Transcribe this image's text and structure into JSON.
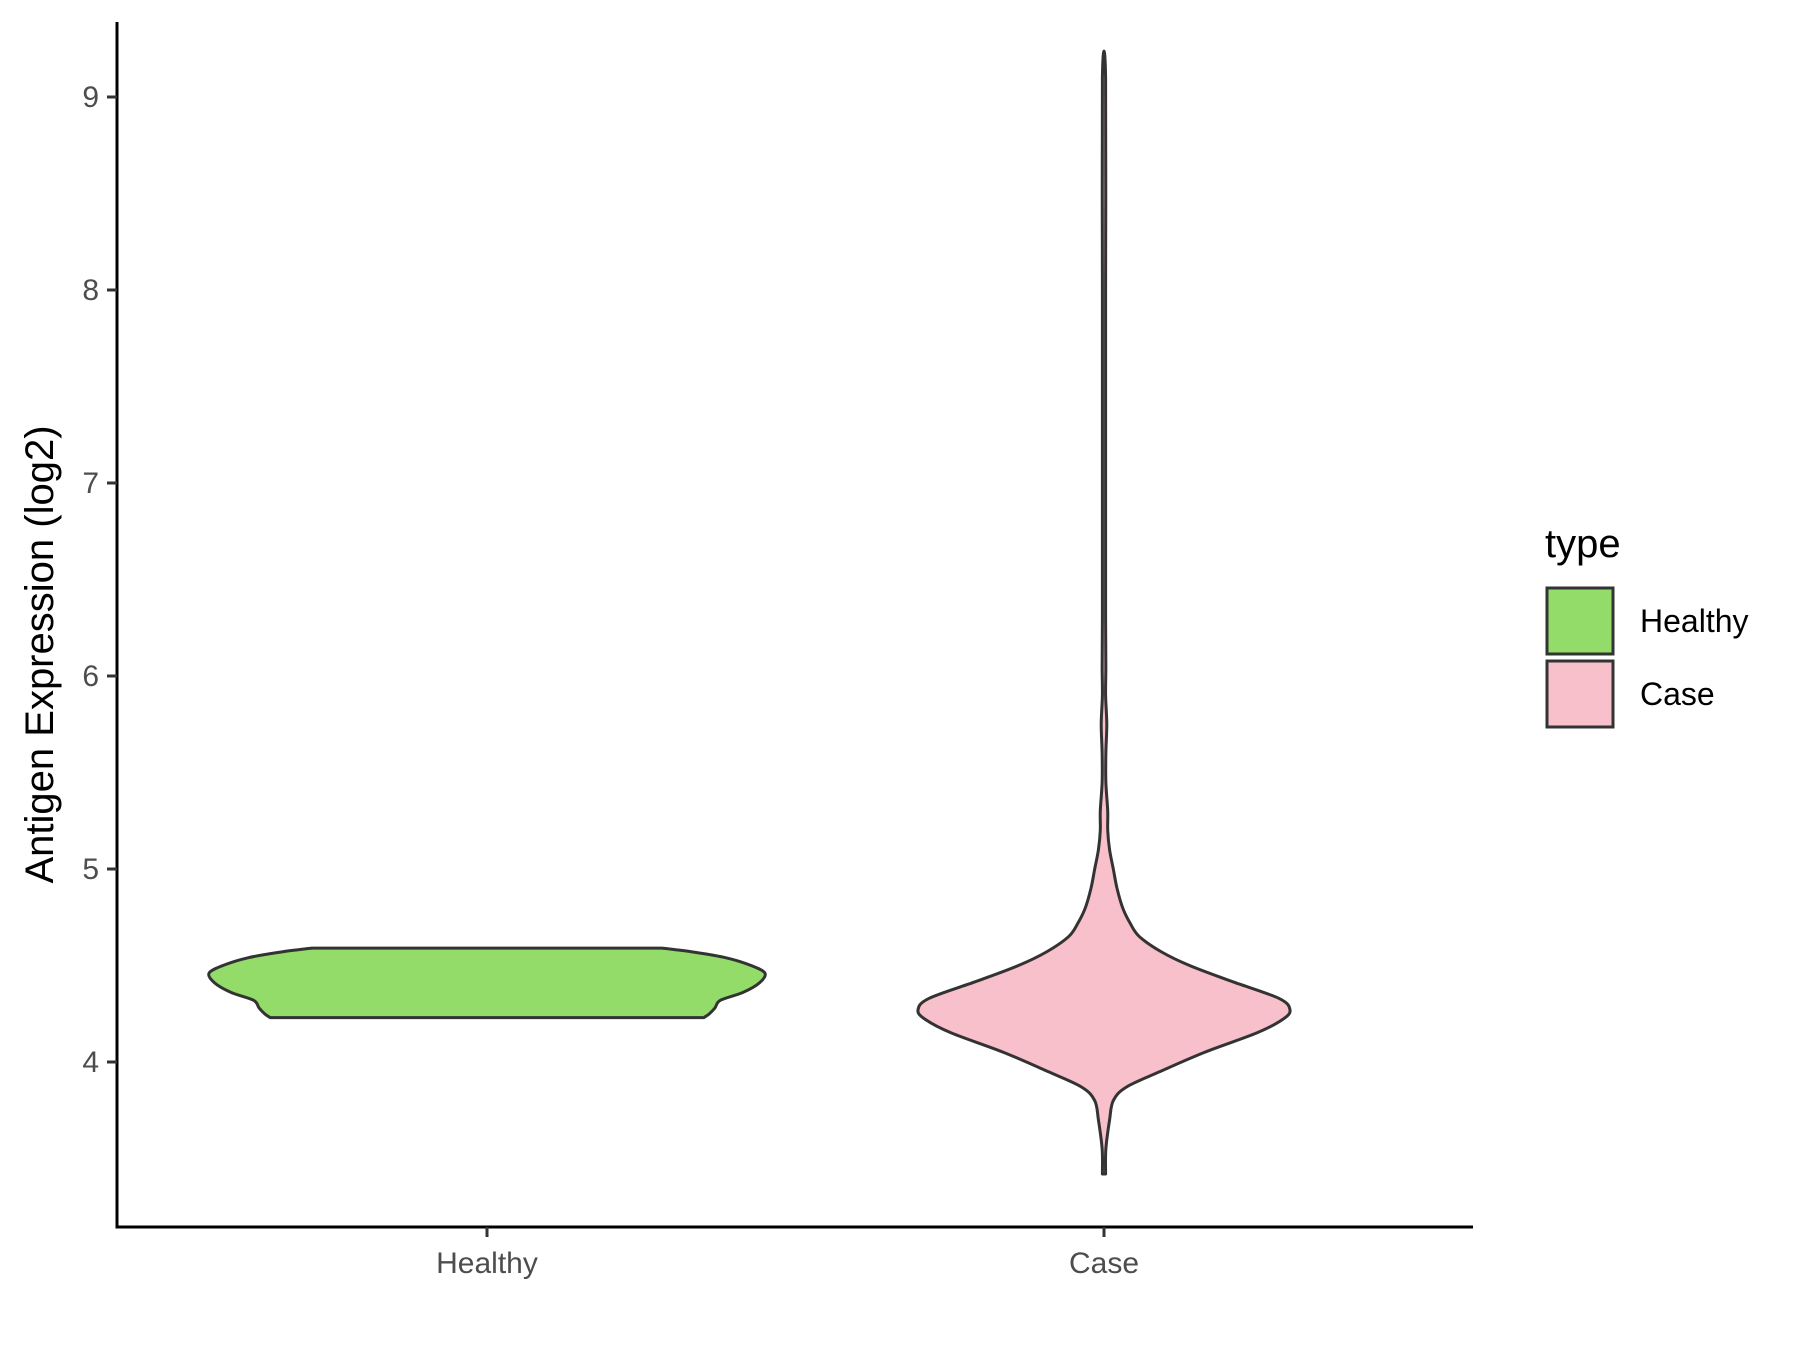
{
  "chart_data": {
    "type": "violin",
    "ylabel": "Antigen Expression (log2)",
    "xlabel": "",
    "categories": [
      "Healthy",
      "Case"
    ],
    "ylim": [
      3.2,
      9.4
    ],
    "yticks": [
      4,
      5,
      6,
      7,
      8,
      9
    ],
    "grid": false,
    "legend": {
      "title": "type",
      "position": "right",
      "entries": [
        {
          "label": "Healthy",
          "color": "#93dc6a"
        },
        {
          "label": "Case",
          "color": "#f7c0cb"
        }
      ]
    },
    "series": [
      {
        "name": "Healthy",
        "category": "Healthy",
        "color": "#93dc6a",
        "min": 4.23,
        "max": 4.59,
        "density": [
          {
            "y": 4.23,
            "w": 0.78
          },
          {
            "y": 4.25,
            "w": 0.8
          },
          {
            "y": 4.28,
            "w": 0.82
          },
          {
            "y": 4.32,
            "w": 0.84
          },
          {
            "y": 4.36,
            "w": 0.92
          },
          {
            "y": 4.41,
            "w": 0.98
          },
          {
            "y": 4.46,
            "w": 1.0
          },
          {
            "y": 4.5,
            "w": 0.95
          },
          {
            "y": 4.54,
            "w": 0.86
          },
          {
            "y": 4.57,
            "w": 0.74
          },
          {
            "y": 4.59,
            "w": 0.63
          }
        ]
      },
      {
        "name": "Case",
        "category": "Case",
        "color": "#f7c0cb",
        "min": 3.42,
        "max": 9.1,
        "density": [
          {
            "y": 3.42,
            "w": 0.0
          },
          {
            "y": 3.55,
            "w": 0.01
          },
          {
            "y": 3.7,
            "w": 0.03
          },
          {
            "y": 3.8,
            "w": 0.05
          },
          {
            "y": 3.87,
            "w": 0.12
          },
          {
            "y": 3.95,
            "w": 0.3
          },
          {
            "y": 4.05,
            "w": 0.54
          },
          {
            "y": 4.15,
            "w": 0.82
          },
          {
            "y": 4.22,
            "w": 0.96
          },
          {
            "y": 4.27,
            "w": 1.0
          },
          {
            "y": 4.33,
            "w": 0.94
          },
          {
            "y": 4.42,
            "w": 0.68
          },
          {
            "y": 4.5,
            "w": 0.46
          },
          {
            "y": 4.57,
            "w": 0.31
          },
          {
            "y": 4.65,
            "w": 0.19
          },
          {
            "y": 4.72,
            "w": 0.14
          },
          {
            "y": 4.8,
            "w": 0.1
          },
          {
            "y": 4.9,
            "w": 0.07
          },
          {
            "y": 5.0,
            "w": 0.05
          },
          {
            "y": 5.1,
            "w": 0.03
          },
          {
            "y": 5.2,
            "w": 0.02
          },
          {
            "y": 5.3,
            "w": 0.02
          },
          {
            "y": 5.45,
            "w": 0.01
          },
          {
            "y": 5.6,
            "w": 0.01
          },
          {
            "y": 5.75,
            "w": 0.015
          },
          {
            "y": 5.9,
            "w": 0.006
          },
          {
            "y": 6.05,
            "w": 0.01
          },
          {
            "y": 6.3,
            "w": 0.008
          },
          {
            "y": 6.6,
            "w": 0.006
          },
          {
            "y": 7.0,
            "w": 0.006
          },
          {
            "y": 7.4,
            "w": 0.007
          },
          {
            "y": 8.0,
            "w": 0.005
          },
          {
            "y": 9.1,
            "w": 0.0
          }
        ]
      }
    ]
  }
}
